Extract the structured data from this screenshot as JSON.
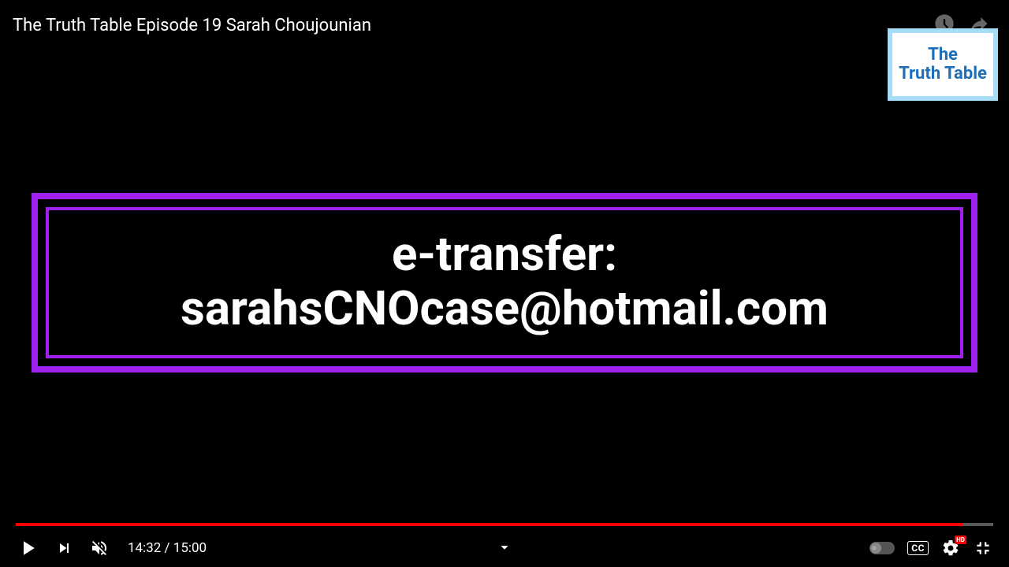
{
  "video": {
    "title": "The Truth Table Episode 19 Sarah Choujounian"
  },
  "channel_card": {
    "line1": "The",
    "line2": "Truth Table",
    "border_color": "#a6dcf5",
    "text_color": "#1d6fb8"
  },
  "content": {
    "line1": "e-transfer:",
    "line2": "sarahsCNOcase@hotmail.com",
    "border_color": "#a020f0",
    "text_color": "#ffffff"
  },
  "player": {
    "current_time": "14:32",
    "duration": "15:00",
    "time_display": "14:32 / 15:00",
    "progress_percent": 96.9,
    "progress_color": "#ff0000",
    "autoplay_on": false,
    "cc_label": "CC",
    "quality_badge": "HD"
  }
}
